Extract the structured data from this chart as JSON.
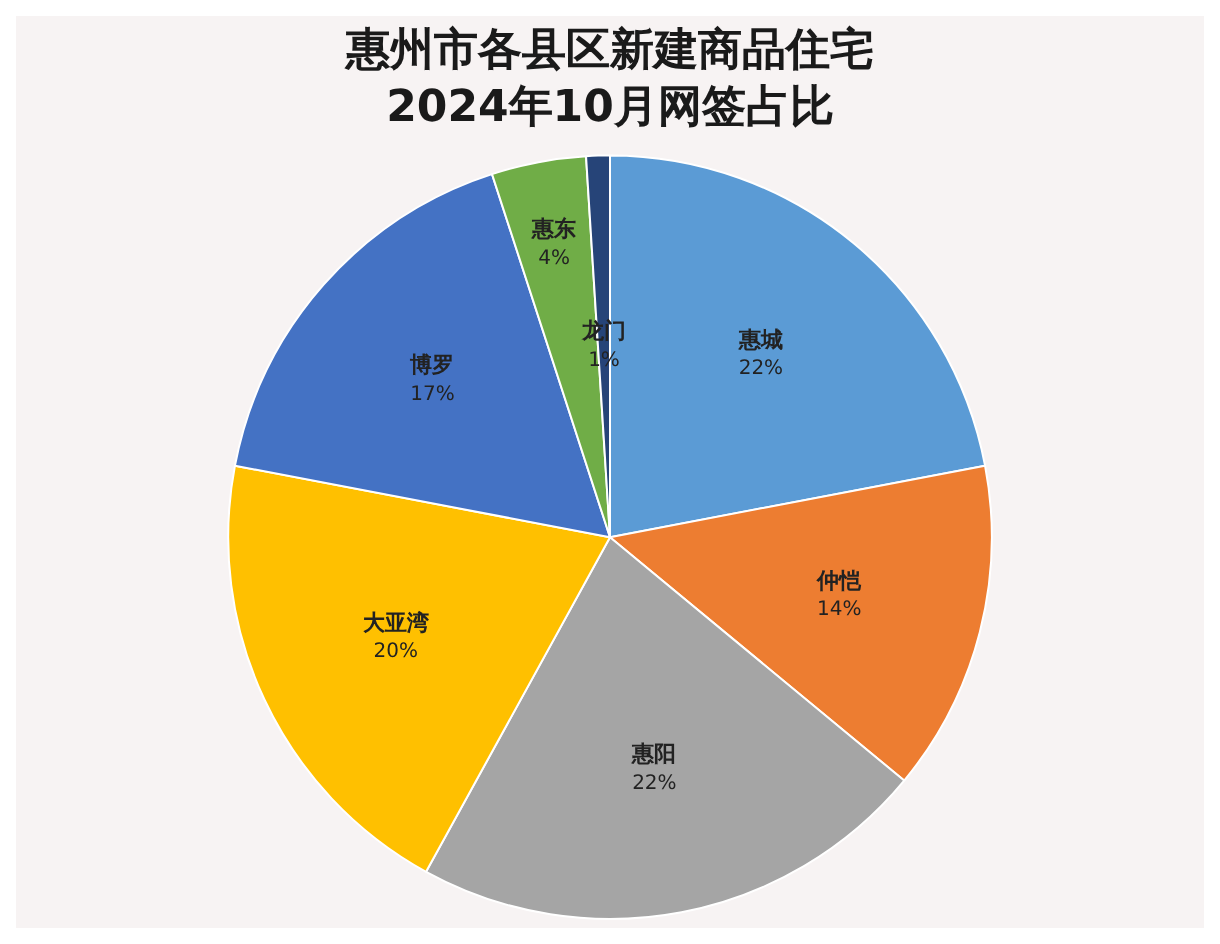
{
  "chart_data": {
    "type": "pie",
    "title": "惠州市各县区新建商品住宅\n2024年10月网签占比",
    "categories": [
      "惠城",
      "仲恺",
      "惠阳",
      "大亚湾",
      "博罗",
      "惠东",
      "龙门"
    ],
    "values": [
      22,
      14,
      22,
      20,
      17,
      4,
      1
    ],
    "value_labels": [
      "22%",
      "14%",
      "22%",
      "20%",
      "17%",
      "4%",
      "1%"
    ],
    "colors": [
      "#5b9bd5",
      "#ed7d31",
      "#a5a5a5",
      "#ffc000",
      "#4472c4",
      "#70ad47",
      "#264478"
    ],
    "legend": false
  }
}
